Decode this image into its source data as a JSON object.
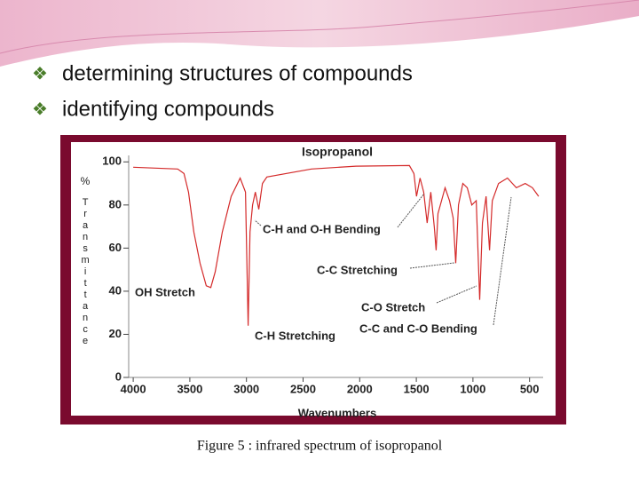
{
  "bullets": [
    "determining structures of compounds",
    "identifying compounds"
  ],
  "caption": "Figure 5 : infrared spectrum of isopropanol",
  "chart_data": {
    "type": "line",
    "title": "Isopropanol",
    "x_label": "Wavenumbers",
    "y_unit": "%",
    "y_label": "Transmittance",
    "x": [
      4000,
      3607,
      3552,
      3512,
      3465,
      3410,
      3355,
      3315,
      3276,
      3213,
      3135,
      3056,
      3009,
      2985,
      2969,
      2946,
      2922,
      2891,
      2859,
      2820,
      2426,
      2033,
      1561,
      1521,
      1498,
      1467,
      1435,
      1404,
      1372,
      1341,
      1325,
      1309,
      1277,
      1246,
      1207,
      1175,
      1152,
      1128,
      1089,
      1050,
      1010,
      971,
      940,
      916,
      884,
      853,
      829,
      774,
      695,
      617,
      538,
      475,
      420
    ],
    "series": [
      {
        "name": "Isopropanol",
        "color": "#d42a2a",
        "values": [
          97.5,
          96.7,
          94.6,
          86,
          67.5,
          53,
          42.5,
          41.7,
          49,
          67.5,
          84,
          92.5,
          86,
          24,
          67.5,
          80,
          86,
          78,
          90,
          93,
          96.7,
          98,
          98.3,
          94.6,
          84,
          92.5,
          86,
          71.7,
          86,
          69.6,
          59,
          76,
          82,
          88,
          82,
          74,
          53,
          80,
          90,
          88,
          80,
          82,
          36,
          71.7,
          84,
          59,
          82,
          90,
          92.5,
          88,
          90,
          88,
          84
        ]
      }
    ],
    "xlim": [
      4040,
      380
    ],
    "ylim": [
      0,
      103
    ],
    "xticks": [
      4000,
      3500,
      3000,
      2500,
      2000,
      1500,
      1000,
      500
    ],
    "yticks": [
      0,
      20,
      40,
      60,
      80,
      100
    ],
    "annotations": [
      "OH Stretch",
      "C-H and O-H Bending",
      "C-C Stretching",
      "C-O Stretch",
      "C-H Stretching",
      "C-C and C-O Bending"
    ]
  }
}
